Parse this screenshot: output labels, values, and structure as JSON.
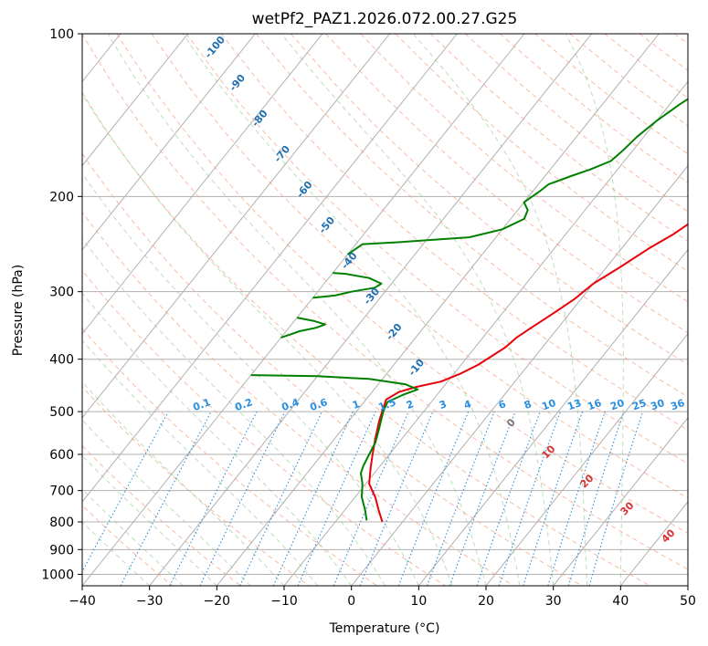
{
  "chart_data": {
    "type": "line",
    "title": "wetPf2_PAZ1.2026.072.00.27.G25",
    "xlabel": "Temperature (°C)",
    "ylabel": "Pressure (hPa)",
    "xlim": [
      -40,
      50
    ],
    "ylim": [
      1050,
      100
    ],
    "y_scale": "log",
    "grid": true,
    "x_ticks": [
      -40,
      -30,
      -20,
      -10,
      0,
      10,
      20,
      30,
      40,
      50
    ],
    "y_ticks": [
      100,
      200,
      300,
      400,
      500,
      600,
      700,
      800,
      900,
      1000
    ],
    "annotations": {
      "dry_adiabat_labels": [
        "-100",
        "-90",
        "-80",
        "-70",
        "-60",
        "-50",
        "-40",
        "-30",
        "-20",
        "-10"
      ],
      "mixing_ratio_labels": [
        "0.1",
        "0.2",
        "0.4",
        "0.6",
        "1",
        "1.5",
        "2",
        "3",
        "4",
        "6",
        "8",
        "10",
        "13",
        "16",
        "20",
        "25",
        "30",
        "36"
      ],
      "moist_adiabat_labels": [
        "0",
        "10",
        "20",
        "30",
        "40"
      ]
    },
    "series": [
      {
        "color": "#e8000b",
        "points": [
          [
            -3,
            800
          ],
          [
            -5,
            760
          ],
          [
            -7,
            720
          ],
          [
            -9.5,
            680
          ],
          [
            -11,
            640
          ],
          [
            -12.5,
            600
          ],
          [
            -14,
            560
          ],
          [
            -15.5,
            520
          ],
          [
            -16.5,
            490
          ],
          [
            -17,
            475
          ],
          [
            -16,
            460
          ],
          [
            -14,
            450
          ],
          [
            -11,
            440
          ],
          [
            -9,
            425
          ],
          [
            -7.5,
            410
          ],
          [
            -6.5,
            395
          ],
          [
            -5.5,
            380
          ],
          [
            -5,
            365
          ],
          [
            -4,
            350
          ],
          [
            -2.5,
            330
          ],
          [
            -1,
            310
          ],
          [
            0,
            290
          ],
          [
            2,
            270
          ],
          [
            4,
            250
          ],
          [
            6,
            235
          ],
          [
            7.5,
            220
          ],
          [
            10,
            205
          ],
          [
            13,
            190
          ],
          [
            16.5,
            172
          ],
          [
            18,
            160
          ],
          [
            20,
            148
          ],
          [
            23,
            135
          ],
          [
            26,
            123
          ],
          [
            28,
            115
          ],
          [
            31,
            107
          ],
          [
            34,
            100
          ]
        ]
      },
      {
        "color": "#008000",
        "points": [
          [
            -5.5,
            795
          ],
          [
            -7,
            760
          ],
          [
            -9,
            720
          ],
          [
            -10.5,
            680
          ],
          [
            -12,
            650
          ],
          [
            -12.5,
            630
          ],
          [
            -13,
            600
          ],
          [
            -13.5,
            570
          ],
          [
            -14.5,
            540
          ],
          [
            -16,
            500
          ],
          [
            -16.5,
            480
          ],
          [
            -15,
            465
          ],
          [
            -13.5,
            455
          ],
          [
            -16,
            445
          ],
          [
            -22,
            435
          ],
          [
            -30,
            430
          ],
          [
            -40,
            428
          ]
        ]
      },
      {
        "color": "#008000",
        "points": [
          [
            -40,
            365
          ],
          [
            -39,
            360
          ],
          [
            -38,
            355
          ],
          [
            -36,
            350
          ],
          [
            -35,
            345
          ],
          [
            -37,
            340
          ],
          [
            -40,
            335
          ]
        ]
      },
      {
        "color": "#008000",
        "points": [
          [
            -40,
            308
          ],
          [
            -37,
            305
          ],
          [
            -35,
            300
          ],
          [
            -32,
            295
          ],
          [
            -31.5,
            290
          ],
          [
            -34,
            283
          ],
          [
            -38,
            278
          ],
          [
            -40,
            277
          ]
        ]
      },
      {
        "color": "#008000",
        "points": [
          [
            -40,
            256
          ],
          [
            -39,
            245
          ],
          [
            -34,
            243
          ],
          [
            -24,
            238
          ],
          [
            -20,
            230
          ],
          [
            -18,
            220
          ],
          [
            -18.5,
            212
          ],
          [
            -20,
            205
          ],
          [
            -19,
            196
          ],
          [
            -18.5,
            190
          ],
          [
            -16,
            183
          ],
          [
            -14,
            178
          ],
          [
            -12,
            172
          ],
          [
            -11.5,
            165
          ],
          [
            -11,
            155
          ],
          [
            -10,
            145
          ],
          [
            -8.5,
            135
          ],
          [
            -6.5,
            125
          ],
          [
            -4.5,
            117
          ],
          [
            -2,
            108
          ],
          [
            -0.5,
            100
          ]
        ]
      }
    ]
  }
}
